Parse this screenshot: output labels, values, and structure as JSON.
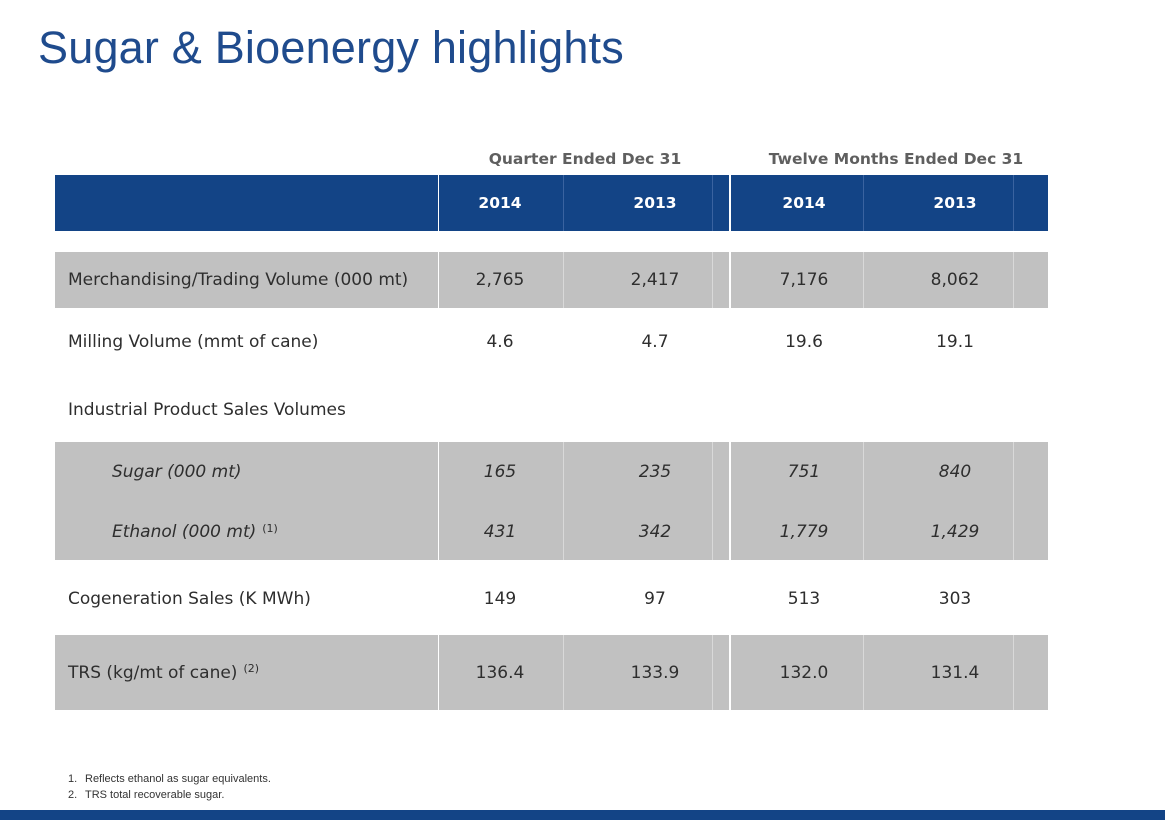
{
  "title": "Sugar & Bioenergy highlights",
  "column_groups": [
    "Quarter Ended Dec 31",
    "Twelve Months Ended Dec 31"
  ],
  "years": [
    "2014",
    "2013",
    "2014",
    "2013"
  ],
  "rows": [
    {
      "label": "Merchandising/Trading Volume (000 mt)",
      "note": "",
      "values": [
        "2,765",
        "2,417",
        "7,176",
        "8,062"
      ]
    },
    {
      "label": "Milling Volume (mmt of cane)",
      "note": "",
      "values": [
        "4.6",
        "4.7",
        "19.6",
        "19.1"
      ]
    },
    {
      "label": "Industrial Product Sales Volumes",
      "note": "",
      "values": [
        "",
        "",
        "",
        ""
      ]
    },
    {
      "label": "Sugar (000 mt)",
      "note": "",
      "values": [
        "165",
        "235",
        "751",
        "840"
      ]
    },
    {
      "label": "Ethanol (000 mt)",
      "note": "(1)",
      "values": [
        "431",
        "342",
        "1,779",
        "1,429"
      ]
    },
    {
      "label": "Cogeneration Sales (K MWh)",
      "note": "",
      "values": [
        "149",
        "97",
        "513",
        "303"
      ]
    },
    {
      "label": "TRS (kg/mt of cane)",
      "note": "(2)",
      "values": [
        "136.4",
        "133.9",
        "132.0",
        "131.4"
      ]
    }
  ],
  "footnotes": [
    {
      "num": "1.",
      "text": "Reflects ethanol as sugar equivalents."
    },
    {
      "num": "2.",
      "text": "TRS total recoverable sugar."
    }
  ],
  "colors": {
    "brand_blue": "#134486",
    "title_blue": "#1f4b8d",
    "row_gray": "#c1c1c1"
  }
}
